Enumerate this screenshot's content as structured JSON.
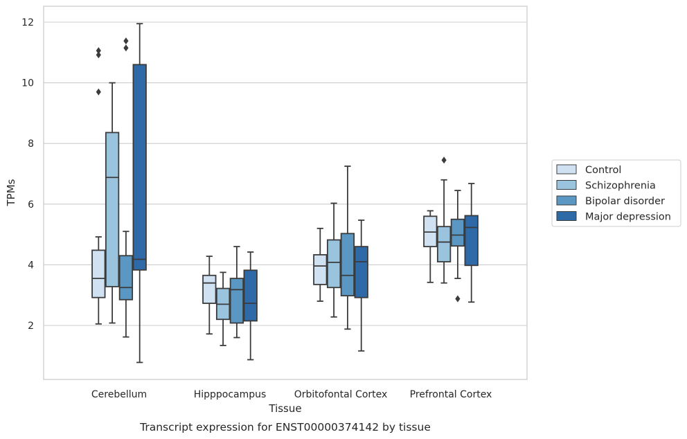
{
  "caption": "Transcript expression for ENST00000374142 by tissue",
  "chart_data": {
    "type": "box",
    "xlabel": "Tissue",
    "ylabel": "TPMs",
    "ylim": [
      0.2,
      12.5
    ],
    "yticks": [
      2,
      4,
      6,
      8,
      10,
      12
    ],
    "grid": "horizontal",
    "legend_position": "right",
    "categories": [
      "Cerebellum",
      "Hipppocampus",
      "Orbitofontal Cortex",
      "Prefrontal Cortex"
    ],
    "series": [
      {
        "name": "Control",
        "color": "#d0e1f2",
        "boxes": [
          {
            "whislo": 2.05,
            "q1": 2.92,
            "med": 3.55,
            "q3": 4.48,
            "whishi": 4.92,
            "fliers": []
          },
          {
            "whislo": 1.72,
            "q1": 2.73,
            "med": 3.4,
            "q3": 3.65,
            "whishi": 4.28,
            "fliers": []
          },
          {
            "whislo": 2.8,
            "q1": 3.35,
            "med": 3.96,
            "q3": 4.33,
            "whishi": 5.2,
            "fliers": []
          },
          {
            "whislo": 3.42,
            "q1": 4.6,
            "med": 5.08,
            "q3": 5.6,
            "whishi": 5.78,
            "fliers": []
          }
        ]
      },
      {
        "name": "Schizophrenia",
        "color": "#9ac3de",
        "boxes": [
          {
            "whislo": 2.08,
            "q1": 3.28,
            "med": 6.88,
            "q3": 8.36,
            "whishi": 10.0,
            "fliers": []
          },
          {
            "whislo": 1.34,
            "q1": 2.2,
            "med": 2.7,
            "q3": 3.22,
            "whishi": 3.75,
            "fliers": []
          },
          {
            "whislo": 2.28,
            "q1": 3.25,
            "med": 4.08,
            "q3": 4.82,
            "whishi": 6.03,
            "fliers": []
          },
          {
            "whislo": 3.4,
            "q1": 4.1,
            "med": 4.75,
            "q3": 5.26,
            "whishi": 6.8,
            "fliers": []
          }
        ]
      },
      {
        "name": "Bipolar disorder",
        "color": "#5a97c3",
        "boxes": [
          {
            "whislo": 1.62,
            "q1": 2.85,
            "med": 3.25,
            "q3": 4.3,
            "whishi": 5.1,
            "fliers": []
          },
          {
            "whislo": 1.6,
            "q1": 2.08,
            "med": 3.18,
            "q3": 3.55,
            "whishi": 4.6,
            "fliers": []
          },
          {
            "whislo": 1.88,
            "q1": 2.98,
            "med": 3.65,
            "q3": 5.03,
            "whishi": 7.25,
            "fliers": []
          },
          {
            "whislo": 3.55,
            "q1": 4.62,
            "med": 4.98,
            "q3": 5.5,
            "whishi": 6.45,
            "fliers": []
          }
        ]
      },
      {
        "name": "Major depression",
        "color": "#2e69a8",
        "boxes": [
          {
            "whislo": 0.78,
            "q1": 3.83,
            "med": 4.18,
            "q3": 10.6,
            "whishi": 11.95,
            "fliers": []
          },
          {
            "whislo": 0.87,
            "q1": 2.15,
            "med": 2.73,
            "q3": 3.82,
            "whishi": 4.42,
            "fliers": []
          },
          {
            "whislo": 1.16,
            "q1": 2.92,
            "med": 4.1,
            "q3": 4.6,
            "whishi": 5.47,
            "fliers": []
          },
          {
            "whislo": 2.77,
            "q1": 3.98,
            "med": 5.23,
            "q3": 5.62,
            "whishi": 6.68,
            "fliers": []
          }
        ]
      }
    ],
    "fliers": [
      {
        "category": "Cerebellum",
        "series": "Control",
        "values": [
          9.7,
          10.92,
          11.06
        ]
      },
      {
        "category": "Cerebellum",
        "series": "Bipolar disorder",
        "values": [
          11.15,
          11.38
        ]
      },
      {
        "category": "Prefrontal Cortex",
        "series": "Schizophrenia",
        "values": [
          7.45
        ]
      },
      {
        "category": "Prefrontal Cortex",
        "series": "Bipolar disorder",
        "values": [
          2.88
        ]
      }
    ]
  },
  "colors": {
    "grid": "#cccccc",
    "frame": "#cccccc",
    "line": "#3b3b3b"
  }
}
